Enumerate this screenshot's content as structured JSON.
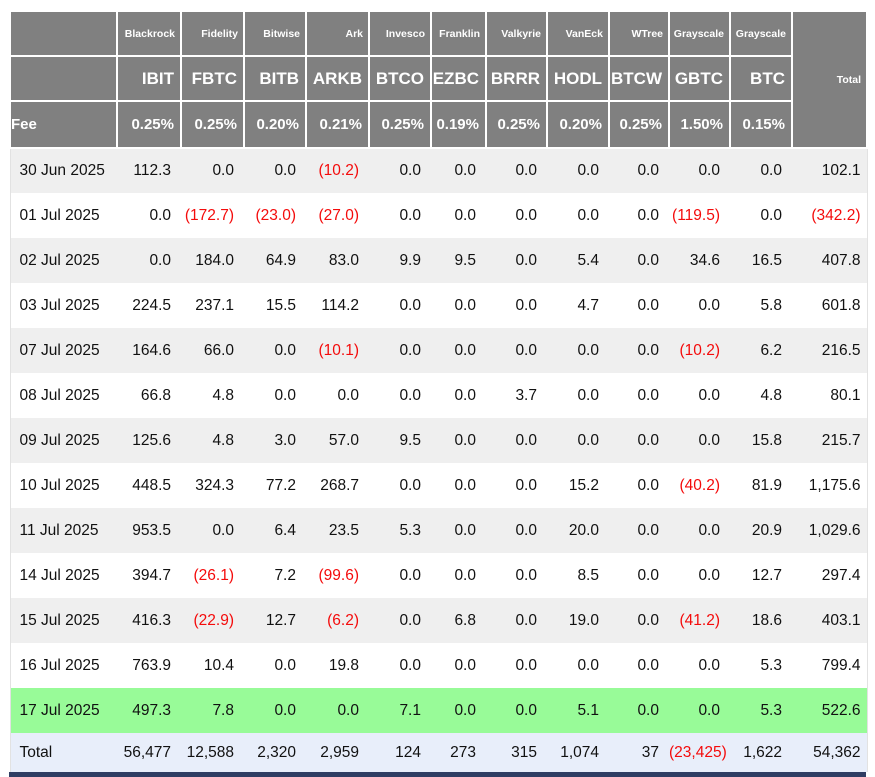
{
  "colors": {
    "header_bg": "#808080",
    "header_text": "#ffffff",
    "stripe_bg": "#efefef",
    "highlight_row_bg": "#98fb98",
    "total_row_bg": "#e8eefa",
    "negative_text": "#f40b0b",
    "bottom_bar": "#2f3d63"
  },
  "table": {
    "fee_label": "Fee",
    "total_header": "Total",
    "providers": [
      "Blackrock",
      "Fidelity",
      "Bitwise",
      "Ark",
      "Invesco",
      "Franklin",
      "Valkyrie",
      "VanEck",
      "WTree",
      "Grayscale",
      "Grayscale"
    ],
    "tickers": [
      "IBIT",
      "FBTC",
      "BITB",
      "ARKB",
      "BTCO",
      "EZBC",
      "BRRR",
      "HODL",
      "BTCW",
      "GBTC",
      "BTC"
    ],
    "fees": [
      "0.25%",
      "0.25%",
      "0.20%",
      "0.21%",
      "0.25%",
      "0.19%",
      "0.25%",
      "0.20%",
      "0.25%",
      "1.50%",
      "0.15%"
    ],
    "rows": [
      {
        "date": "30 Jun 2025",
        "values": [
          "112.3",
          "0.0",
          "0.0",
          "(10.2)",
          "0.0",
          "0.0",
          "0.0",
          "0.0",
          "0.0",
          "0.0",
          "0.0"
        ],
        "total": "102.1",
        "highlight": false
      },
      {
        "date": "01 Jul 2025",
        "values": [
          "0.0",
          "(172.7)",
          "(23.0)",
          "(27.0)",
          "0.0",
          "0.0",
          "0.0",
          "0.0",
          "0.0",
          "(119.5)",
          "0.0"
        ],
        "total": "(342.2)",
        "highlight": false
      },
      {
        "date": "02 Jul 2025",
        "values": [
          "0.0",
          "184.0",
          "64.9",
          "83.0",
          "9.9",
          "9.5",
          "0.0",
          "5.4",
          "0.0",
          "34.6",
          "16.5"
        ],
        "total": "407.8",
        "highlight": false
      },
      {
        "date": "03 Jul 2025",
        "values": [
          "224.5",
          "237.1",
          "15.5",
          "114.2",
          "0.0",
          "0.0",
          "0.0",
          "4.7",
          "0.0",
          "0.0",
          "5.8"
        ],
        "total": "601.8",
        "highlight": false
      },
      {
        "date": "07 Jul 2025",
        "values": [
          "164.6",
          "66.0",
          "0.0",
          "(10.1)",
          "0.0",
          "0.0",
          "0.0",
          "0.0",
          "0.0",
          "(10.2)",
          "6.2"
        ],
        "total": "216.5",
        "highlight": false
      },
      {
        "date": "08 Jul 2025",
        "values": [
          "66.8",
          "4.8",
          "0.0",
          "0.0",
          "0.0",
          "0.0",
          "3.7",
          "0.0",
          "0.0",
          "0.0",
          "4.8"
        ],
        "total": "80.1",
        "highlight": false
      },
      {
        "date": "09 Jul 2025",
        "values": [
          "125.6",
          "4.8",
          "3.0",
          "57.0",
          "9.5",
          "0.0",
          "0.0",
          "0.0",
          "0.0",
          "0.0",
          "15.8"
        ],
        "total": "215.7",
        "highlight": false
      },
      {
        "date": "10 Jul 2025",
        "values": [
          "448.5",
          "324.3",
          "77.2",
          "268.7",
          "0.0",
          "0.0",
          "0.0",
          "15.2",
          "0.0",
          "(40.2)",
          "81.9"
        ],
        "total": "1,175.6",
        "highlight": false
      },
      {
        "date": "11 Jul 2025",
        "values": [
          "953.5",
          "0.0",
          "6.4",
          "23.5",
          "5.3",
          "0.0",
          "0.0",
          "20.0",
          "0.0",
          "0.0",
          "20.9"
        ],
        "total": "1,029.6",
        "highlight": false
      },
      {
        "date": "14 Jul 2025",
        "values": [
          "394.7",
          "(26.1)",
          "7.2",
          "(99.6)",
          "0.0",
          "0.0",
          "0.0",
          "8.5",
          "0.0",
          "0.0",
          "12.7"
        ],
        "total": "297.4",
        "highlight": false
      },
      {
        "date": "15 Jul 2025",
        "values": [
          "416.3",
          "(22.9)",
          "12.7",
          "(6.2)",
          "0.0",
          "6.8",
          "0.0",
          "19.0",
          "0.0",
          "(41.2)",
          "18.6"
        ],
        "total": "403.1",
        "highlight": false
      },
      {
        "date": "16 Jul 2025",
        "values": [
          "763.9",
          "10.4",
          "0.0",
          "19.8",
          "0.0",
          "0.0",
          "0.0",
          "0.0",
          "0.0",
          "0.0",
          "5.3"
        ],
        "total": "799.4",
        "highlight": false
      },
      {
        "date": "17 Jul 2025",
        "values": [
          "497.3",
          "7.8",
          "0.0",
          "0.0",
          "7.1",
          "0.0",
          "0.0",
          "5.1",
          "0.0",
          "0.0",
          "5.3"
        ],
        "total": "522.6",
        "highlight": true
      }
    ],
    "total_row": {
      "label": "Total",
      "values": [
        "56,477",
        "12,588",
        "2,320",
        "2,959",
        "124",
        "273",
        "315",
        "1,074",
        "37",
        "(23,425)",
        "1,622"
      ],
      "total": "54,362"
    }
  }
}
